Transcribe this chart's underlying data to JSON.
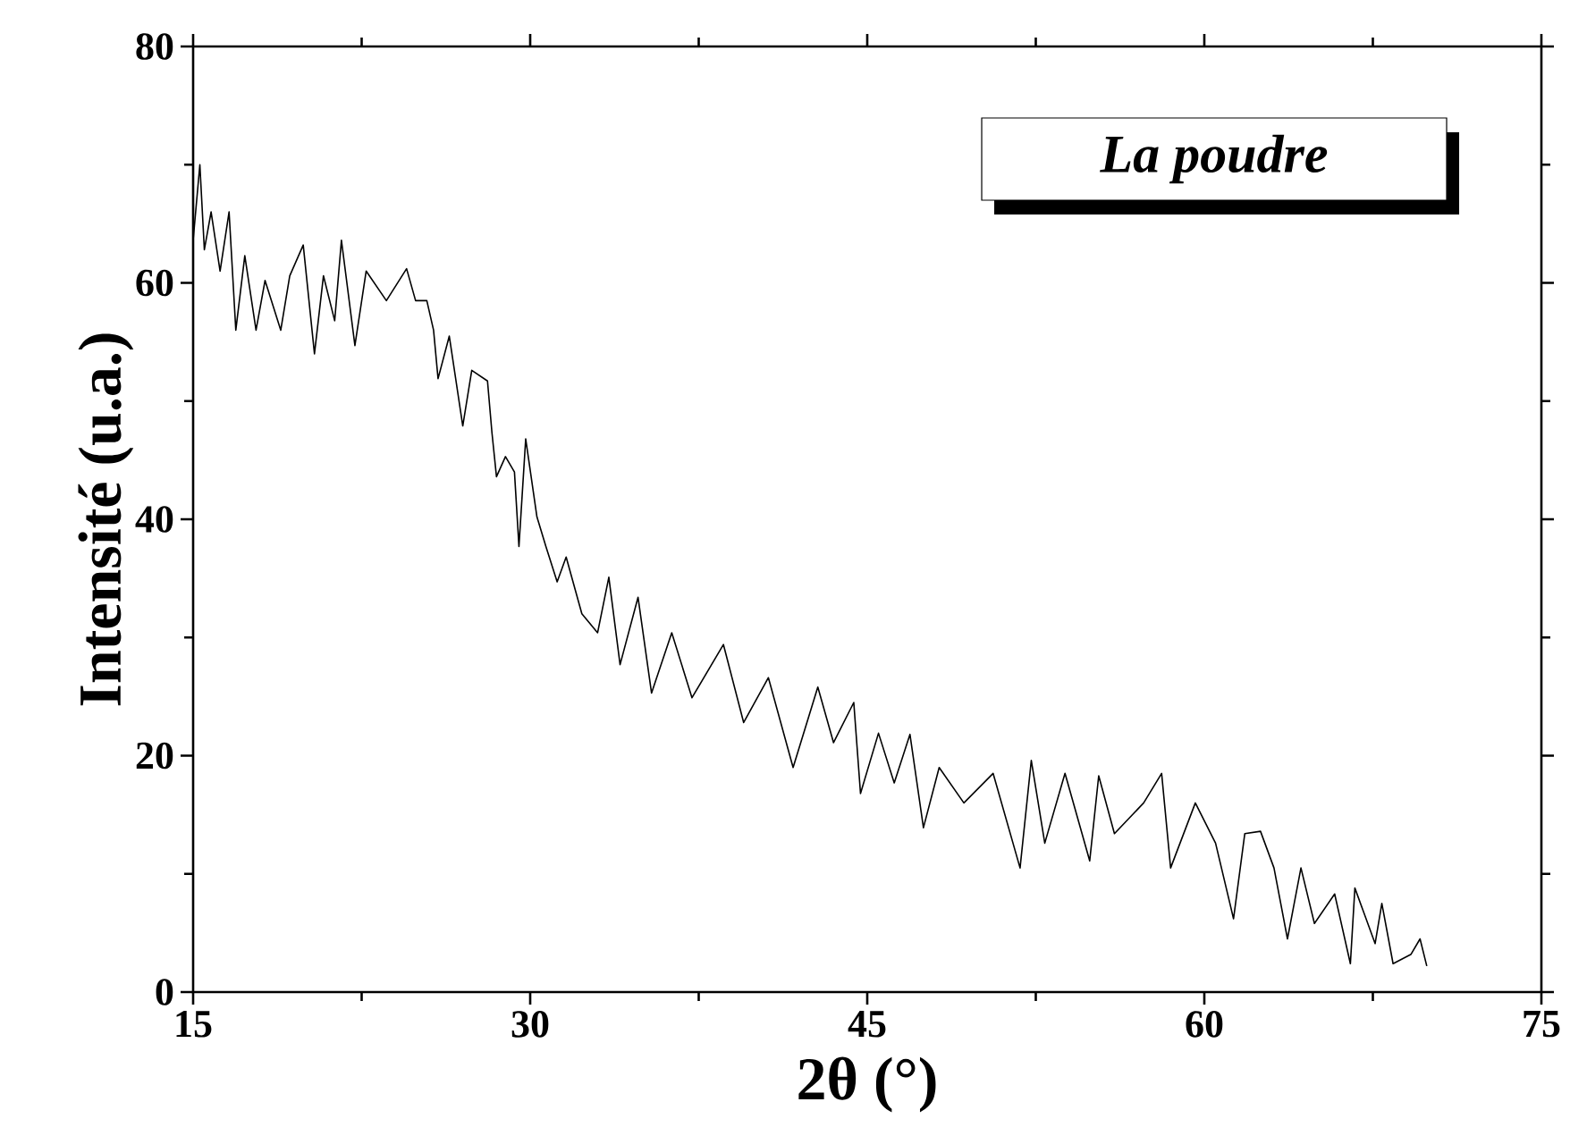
{
  "chart_data": {
    "type": "line",
    "xlabel": "2θ (°)",
    "ylabel": "Intensité (u.a.)",
    "annotations": [
      "La poudre"
    ],
    "xlim": [
      15,
      75
    ],
    "ylim": [
      0,
      80
    ],
    "xticks": [
      15,
      30,
      45,
      60,
      75
    ],
    "yticks": [
      0,
      20,
      40,
      60,
      80
    ],
    "x": [
      15.0,
      15.3,
      15.5,
      15.8,
      16.2,
      16.6,
      16.9,
      17.3,
      17.8,
      18.2,
      18.9,
      19.3,
      19.9,
      20.4,
      20.8,
      21.3,
      21.6,
      22.2,
      22.7,
      23.6,
      24.5,
      24.9,
      25.4,
      25.7,
      25.9,
      26.4,
      27.0,
      27.4,
      28.1,
      28.3,
      28.5,
      28.9,
      29.3,
      29.5,
      29.8,
      30.3,
      30.7,
      31.2,
      31.6,
      32.3,
      33.0,
      33.5,
      34.0,
      34.8,
      35.4,
      36.3,
      37.2,
      38.6,
      39.5,
      40.6,
      41.7,
      42.8,
      43.5,
      44.4,
      44.7,
      45.5,
      46.2,
      46.9,
      47.5,
      48.2,
      49.3,
      50.6,
      51.8,
      52.3,
      52.9,
      53.8,
      54.9,
      55.3,
      56.0,
      57.3,
      58.1,
      58.5,
      59.6,
      60.5,
      61.3,
      61.8,
      62.5,
      63.1,
      63.7,
      64.3,
      64.9,
      65.8,
      66.5,
      66.7,
      67.6,
      67.9,
      68.4,
      69.2,
      69.6,
      69.9
    ],
    "series": [
      {
        "color": "#000000",
        "values": [
          63.6,
          70,
          62.8,
          66,
          61,
          66,
          56,
          62.3,
          56,
          60.2,
          56,
          60.6,
          63.2,
          54,
          60.6,
          56.8,
          63.6,
          54.7,
          61,
          58.5,
          61.2,
          58.5,
          58.5,
          56,
          51.9,
          55.5,
          47.9,
          52.6,
          51.7,
          47.3,
          43.6,
          45.3,
          44,
          37.7,
          46.8,
          40.2,
          37.7,
          34.7,
          36.8,
          32,
          30.4,
          35.1,
          27.7,
          33.4,
          25.3,
          30.4,
          24.9,
          29.4,
          22.8,
          26.6,
          19,
          25.8,
          21.1,
          24.5,
          16.8,
          21.9,
          17.7,
          21.8,
          13.9,
          19,
          16,
          18.5,
          10.5,
          19.6,
          12.6,
          18.5,
          11.1,
          18.3,
          13.4,
          16,
          18.5,
          10.5,
          16,
          12.6,
          6.2,
          13.4,
          13.6,
          10.5,
          4.5,
          10.5,
          5.8,
          8.3,
          2.4,
          8.8,
          4.1,
          7.5,
          2.4,
          3.2,
          4.5,
          2.2
        ]
      }
    ]
  }
}
